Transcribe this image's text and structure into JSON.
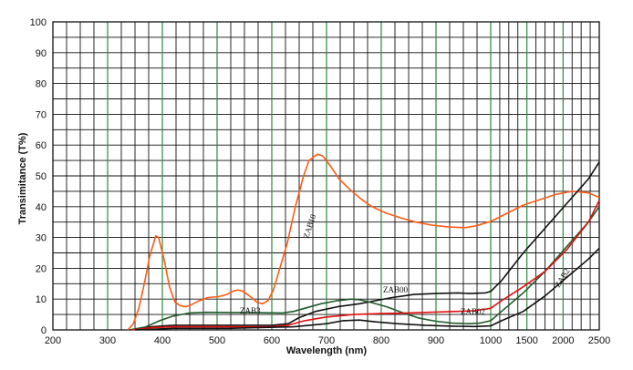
{
  "chart_data": {
    "type": "line",
    "xlabel": "Wavelength (nm)",
    "ylabel": "Transimitance (T%)",
    "x_ticks": [
      200,
      300,
      400,
      500,
      600,
      700,
      800,
      900,
      1000,
      1500,
      2000,
      2500
    ],
    "y_ticks": [
      0,
      10,
      20,
      30,
      40,
      50,
      60,
      70,
      80,
      90,
      100
    ],
    "ylim": [
      0,
      100
    ],
    "xscale": "piecewise: 200-1000 nm linear, 1000-2500 nm compressed",
    "grid": true,
    "colors": {
      "major_grid": "#2f8a3a",
      "minor_grid": "#111111",
      "axis": "#111111"
    },
    "series": [
      {
        "name": "ZAB10",
        "color": "#ff5a14",
        "points": [
          [
            337,
            0
          ],
          [
            347,
            2
          ],
          [
            357,
            7
          ],
          [
            367,
            15
          ],
          [
            377,
            24
          ],
          [
            388,
            30.5
          ],
          [
            393,
            30
          ],
          [
            403,
            23
          ],
          [
            413,
            14
          ],
          [
            423,
            9
          ],
          [
            433,
            7.8
          ],
          [
            443,
            7.5
          ],
          [
            453,
            8.2
          ],
          [
            468,
            9.5
          ],
          [
            483,
            10.5
          ],
          [
            503,
            10.8
          ],
          [
            518,
            11.5
          ],
          [
            528,
            12.5
          ],
          [
            538,
            13
          ],
          [
            548,
            12.5
          ],
          [
            563,
            10.5
          ],
          [
            573,
            9
          ],
          [
            583,
            8.5
          ],
          [
            593,
            9.5
          ],
          [
            603,
            13
          ],
          [
            613,
            19
          ],
          [
            628,
            28
          ],
          [
            643,
            40
          ],
          [
            658,
            50
          ],
          [
            668,
            55
          ],
          [
            683,
            57
          ],
          [
            693,
            56.5
          ],
          [
            708,
            53
          ],
          [
            723,
            49
          ],
          [
            743,
            45.5
          ],
          [
            763,
            42.5
          ],
          [
            783,
            40
          ],
          [
            808,
            38
          ],
          [
            833,
            36.5
          ],
          [
            863,
            35
          ],
          [
            893,
            34
          ],
          [
            923,
            33.4
          ],
          [
            953,
            33.2
          ],
          [
            973,
            33.8
          ],
          [
            1000,
            35.2
          ],
          [
            1300,
            40.5
          ],
          [
            1600,
            44
          ],
          [
            1750,
            45
          ],
          [
            1900,
            44.5
          ],
          [
            2000,
            43
          ]
        ]
      },
      {
        "name": "ZAB00",
        "color": "#111111",
        "points": [
          [
            340,
            0
          ],
          [
            380,
            1
          ],
          [
            420,
            1.5
          ],
          [
            520,
            1.5
          ],
          [
            600,
            1.5
          ],
          [
            630,
            2
          ],
          [
            650,
            4
          ],
          [
            680,
            6
          ],
          [
            720,
            7.5
          ],
          [
            760,
            8.5
          ],
          [
            790,
            9.5
          ],
          [
            820,
            10.5
          ],
          [
            860,
            11.5
          ],
          [
            900,
            11.8
          ],
          [
            940,
            12
          ],
          [
            960,
            11.8
          ],
          [
            990,
            12
          ],
          [
            1000,
            12.5
          ],
          [
            1100,
            16
          ],
          [
            1300,
            25
          ],
          [
            1500,
            33
          ],
          [
            1700,
            41
          ],
          [
            1900,
            49
          ],
          [
            2000,
            54.5
          ]
        ]
      },
      {
        "name": "ZAB3",
        "color": "#1f5a2a",
        "points": [
          [
            340,
            0
          ],
          [
            370,
            1
          ],
          [
            395,
            3
          ],
          [
            420,
            4.5
          ],
          [
            450,
            5.5
          ],
          [
            480,
            5.7
          ],
          [
            560,
            5.6
          ],
          [
            620,
            5.5
          ],
          [
            640,
            6
          ],
          [
            660,
            7
          ],
          [
            690,
            8.5
          ],
          [
            720,
            9.5
          ],
          [
            745,
            10
          ],
          [
            760,
            9.8
          ],
          [
            780,
            9
          ],
          [
            810,
            7.5
          ],
          [
            840,
            5.5
          ],
          [
            870,
            3.8
          ],
          [
            900,
            2.8
          ],
          [
            930,
            2.2
          ],
          [
            960,
            2
          ],
          [
            980,
            2.2
          ],
          [
            1000,
            3
          ],
          [
            1100,
            6
          ],
          [
            1300,
            12
          ],
          [
            1500,
            19
          ],
          [
            1700,
            27
          ],
          [
            1900,
            35
          ],
          [
            2000,
            40
          ]
        ]
      },
      {
        "name": "ZAB02",
        "color": "#e30f0f",
        "points": [
          [
            345,
            0
          ],
          [
            380,
            0.7
          ],
          [
            420,
            1
          ],
          [
            500,
            1
          ],
          [
            600,
            1
          ],
          [
            630,
            1.5
          ],
          [
            660,
            3
          ],
          [
            700,
            4.2
          ],
          [
            750,
            5
          ],
          [
            800,
            5.3
          ],
          [
            850,
            5.5
          ],
          [
            900,
            5.8
          ],
          [
            940,
            6
          ],
          [
            970,
            6.2
          ],
          [
            1000,
            7
          ],
          [
            1100,
            9.5
          ],
          [
            1300,
            14
          ],
          [
            1500,
            19
          ],
          [
            1700,
            26
          ],
          [
            1900,
            35
          ],
          [
            2000,
            42
          ]
        ]
      },
      {
        "name": "ZAB2",
        "color": "#111111",
        "points": [
          [
            350,
            0
          ],
          [
            420,
            0.5
          ],
          [
            520,
            0.5
          ],
          [
            640,
            1
          ],
          [
            700,
            2
          ],
          [
            730,
            3
          ],
          [
            760,
            3.2
          ],
          [
            790,
            2.6
          ],
          [
            830,
            2
          ],
          [
            880,
            1.5
          ],
          [
            930,
            1.2
          ],
          [
            970,
            1.1
          ],
          [
            1000,
            1.3
          ],
          [
            1100,
            3
          ],
          [
            1300,
            6
          ],
          [
            1500,
            11
          ],
          [
            1700,
            17
          ],
          [
            1900,
            23
          ],
          [
            2000,
            26.5
          ]
        ]
      }
    ]
  }
}
